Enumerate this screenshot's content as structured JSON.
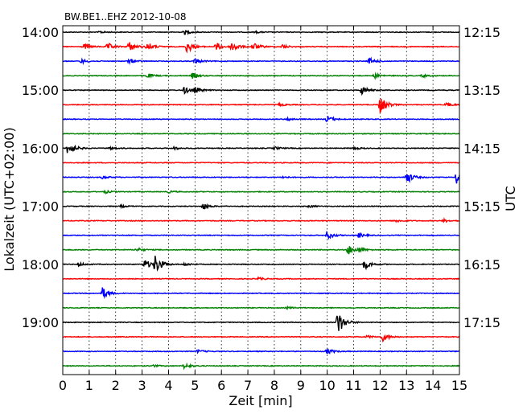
{
  "chart_data": {
    "type": "line",
    "title": "BW.BE1..EHZ 2012-10-08",
    "xlabel": "Zeit  [min]",
    "ylabel_left": "Lokalzeit (UTC+02:00)",
    "ylabel_right": "UTC",
    "xlim": [
      0,
      15
    ],
    "x_ticks": [
      "0",
      "1",
      "2",
      "3",
      "4",
      "5",
      "6",
      "7",
      "8",
      "9",
      "10",
      "11",
      "12",
      "13",
      "14",
      "15"
    ],
    "left_tick_labels": [
      "14:00",
      "15:00",
      "16:00",
      "17:00",
      "18:00",
      "19:00"
    ],
    "right_tick_labels": [
      "12:15",
      "13:15",
      "14:15",
      "15:15",
      "16:15",
      "17:15"
    ],
    "minutes_per_trace": 15,
    "trace_count": 24,
    "grid": "vertical dotted at each minute",
    "trace_colors": [
      "#000000",
      "#ff0000",
      "#0000ff",
      "#008000"
    ],
    "events": [
      {
        "trace": 0,
        "t": 1.4,
        "amp": 0.15
      },
      {
        "trace": 0,
        "t": 4.6,
        "amp": 0.3
      },
      {
        "trace": 0,
        "t": 7.3,
        "amp": 0.12
      },
      {
        "trace": 1,
        "t": 0.8,
        "amp": 0.4
      },
      {
        "trace": 1,
        "t": 1.7,
        "amp": 0.5
      },
      {
        "trace": 1,
        "t": 2.5,
        "amp": 0.7
      },
      {
        "trace": 1,
        "t": 3.2,
        "amp": 0.6
      },
      {
        "trace": 1,
        "t": 4.7,
        "amp": 0.9
      },
      {
        "trace": 1,
        "t": 5.8,
        "amp": 0.6
      },
      {
        "trace": 1,
        "t": 6.4,
        "amp": 0.8
      },
      {
        "trace": 1,
        "t": 7.2,
        "amp": 0.6
      },
      {
        "trace": 1,
        "t": 8.3,
        "amp": 0.3
      },
      {
        "trace": 2,
        "t": 0.7,
        "amp": 0.3
      },
      {
        "trace": 2,
        "t": 2.5,
        "amp": 0.3
      },
      {
        "trace": 2,
        "t": 5.0,
        "amp": 0.4
      },
      {
        "trace": 2,
        "t": 11.6,
        "amp": 0.45
      },
      {
        "trace": 3,
        "t": 3.2,
        "amp": 0.3
      },
      {
        "trace": 3,
        "t": 4.9,
        "amp": 0.4
      },
      {
        "trace": 3,
        "t": 11.8,
        "amp": 0.3
      },
      {
        "trace": 3,
        "t": 13.6,
        "amp": 0.2
      },
      {
        "trace": 4,
        "t": 4.6,
        "amp": 0.5
      },
      {
        "trace": 4,
        "t": 5.0,
        "amp": 0.4
      },
      {
        "trace": 4,
        "t": 11.3,
        "amp": 0.6
      },
      {
        "trace": 5,
        "t": 12.0,
        "amp": 1.2
      },
      {
        "trace": 5,
        "t": 8.2,
        "amp": 0.2
      },
      {
        "trace": 5,
        "t": 14.5,
        "amp": 0.3
      },
      {
        "trace": 6,
        "t": 10.0,
        "amp": 0.5
      },
      {
        "trace": 6,
        "t": 8.5,
        "amp": 0.2
      },
      {
        "trace": 8,
        "t": 0.2,
        "amp": 1.1
      },
      {
        "trace": 8,
        "t": 1.8,
        "amp": 0.2
      },
      {
        "trace": 8,
        "t": 4.2,
        "amp": 0.2
      },
      {
        "trace": 8,
        "t": 8.0,
        "amp": 0.2
      },
      {
        "trace": 8,
        "t": 11.0,
        "amp": 0.2
      },
      {
        "trace": 10,
        "t": 1.5,
        "amp": 0.2
      },
      {
        "trace": 10,
        "t": 8.3,
        "amp": 0.15
      },
      {
        "trace": 10,
        "t": 13.0,
        "amp": 0.9
      },
      {
        "trace": 10,
        "t": 14.9,
        "amp": 0.9
      },
      {
        "trace": 11,
        "t": 1.6,
        "amp": 0.2
      },
      {
        "trace": 11,
        "t": 4.0,
        "amp": 0.15
      },
      {
        "trace": 12,
        "t": 2.2,
        "amp": 0.15
      },
      {
        "trace": 12,
        "t": 5.3,
        "amp": 0.45
      },
      {
        "trace": 12,
        "t": 9.3,
        "amp": 0.15
      },
      {
        "trace": 13,
        "t": 12.6,
        "amp": 0.2
      },
      {
        "trace": 13,
        "t": 14.4,
        "amp": 0.2
      },
      {
        "trace": 14,
        "t": 10.0,
        "amp": 0.6
      },
      {
        "trace": 14,
        "t": 11.2,
        "amp": 0.3
      },
      {
        "trace": 15,
        "t": 2.8,
        "amp": 0.3
      },
      {
        "trace": 15,
        "t": 10.8,
        "amp": 0.7
      },
      {
        "trace": 15,
        "t": 11.2,
        "amp": 0.3
      },
      {
        "trace": 16,
        "t": 0.6,
        "amp": 0.25
      },
      {
        "trace": 16,
        "t": 3.1,
        "amp": 0.7
      },
      {
        "trace": 16,
        "t": 3.5,
        "amp": 1.3
      },
      {
        "trace": 16,
        "t": 4.6,
        "amp": 0.2
      },
      {
        "trace": 16,
        "t": 11.4,
        "amp": 0.7
      },
      {
        "trace": 17,
        "t": 7.4,
        "amp": 0.2
      },
      {
        "trace": 18,
        "t": 1.5,
        "amp": 0.8
      },
      {
        "trace": 19,
        "t": 8.5,
        "amp": 0.15
      },
      {
        "trace": 20,
        "t": 10.4,
        "amp": 1.8
      },
      {
        "trace": 21,
        "t": 12.1,
        "amp": 0.6
      },
      {
        "trace": 21,
        "t": 11.5,
        "amp": 0.2
      },
      {
        "trace": 22,
        "t": 5.1,
        "amp": 0.2
      },
      {
        "trace": 22,
        "t": 10.0,
        "amp": 0.4
      },
      {
        "trace": 23,
        "t": 4.6,
        "amp": 0.4
      },
      {
        "trace": 23,
        "t": 3.4,
        "amp": 0.15
      }
    ]
  }
}
